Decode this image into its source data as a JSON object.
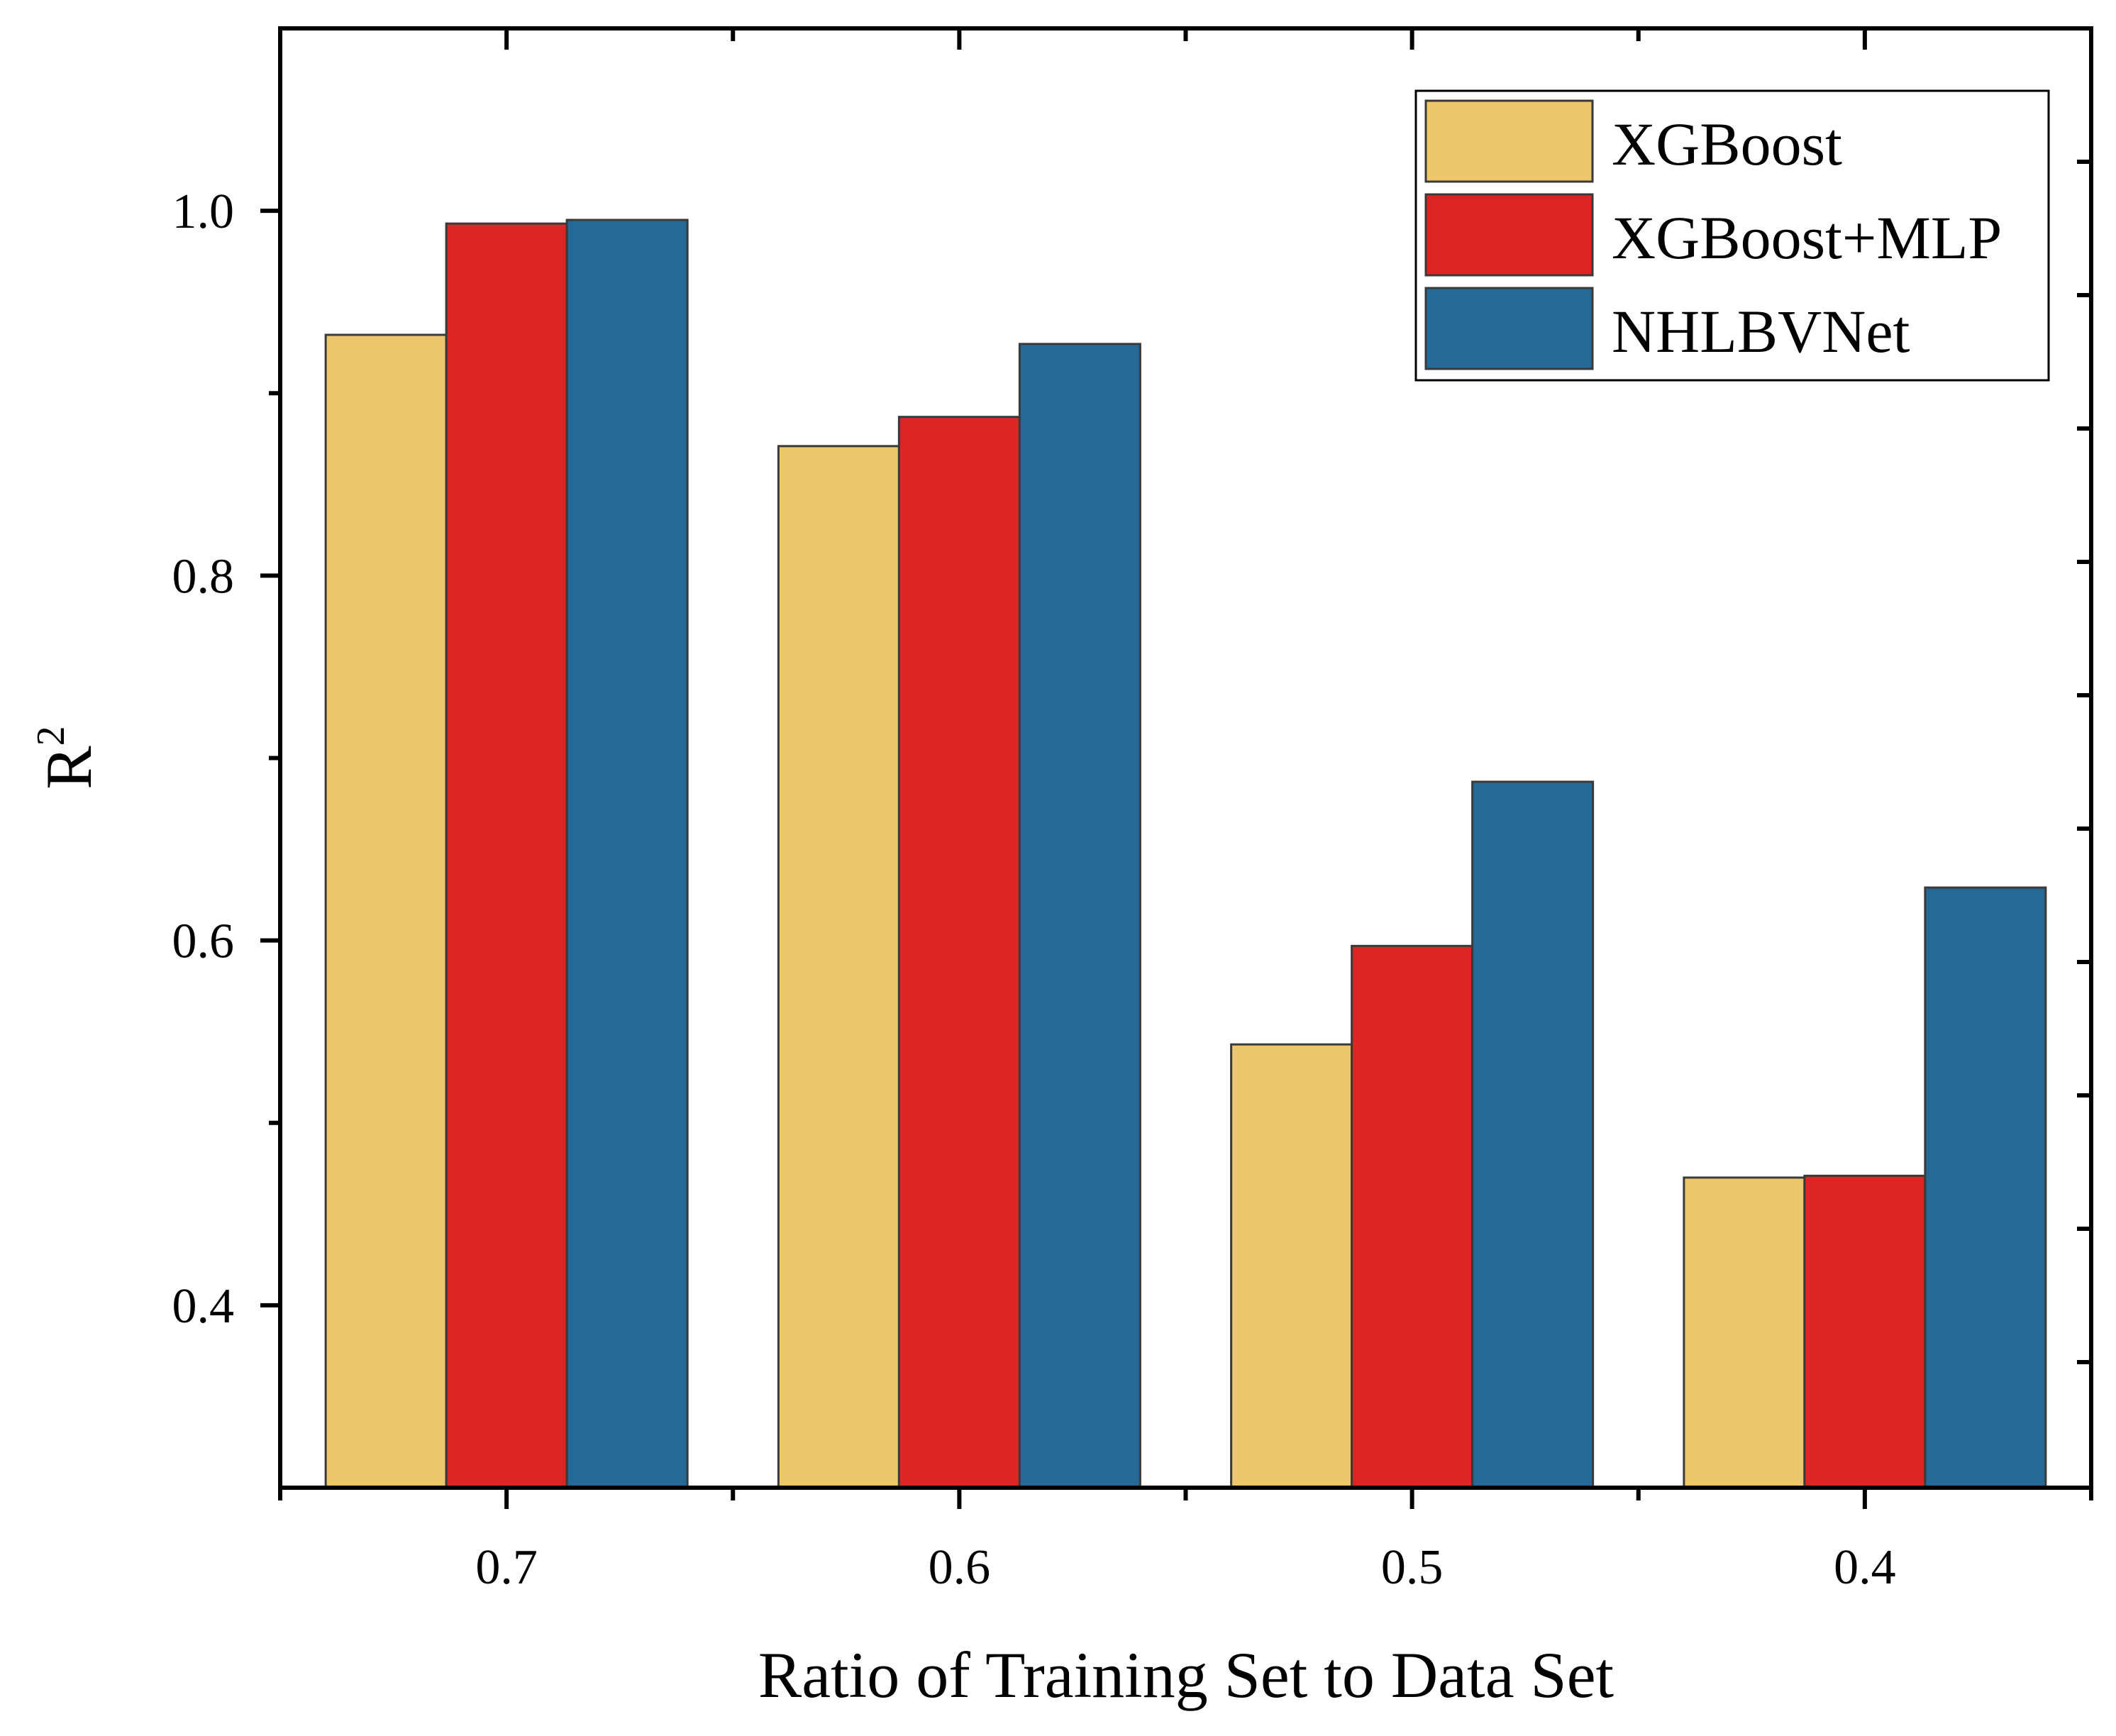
{
  "chart_data": {
    "type": "bar",
    "xlabel": "Ratio of Training Set to Data Set",
    "ylabel": "R",
    "ylabel_superscript": "2",
    "categories": [
      "0.7",
      "0.6",
      "0.5",
      "0.4"
    ],
    "series": [
      {
        "name": "XGBoost",
        "color": "#ECC76B",
        "values": [
          0.932,
          0.871,
          0.543,
          0.47
        ]
      },
      {
        "name": "XGBoost+MLP",
        "color": "#DC2626",
        "values": [
          0.993,
          0.887,
          0.597,
          0.471
        ]
      },
      {
        "name": "NHLBVNet",
        "color": "#256996",
        "values": [
          0.995,
          0.927,
          0.687,
          0.629
        ]
      }
    ],
    "ylim": [
      0.3,
      1.1
    ],
    "yticks": [
      "0.4",
      "0.6",
      "0.8",
      "1.0"
    ],
    "ytick_values": [
      0.4,
      0.6,
      0.8,
      1.0
    ],
    "legend_position": "top-right",
    "grid": false
  }
}
